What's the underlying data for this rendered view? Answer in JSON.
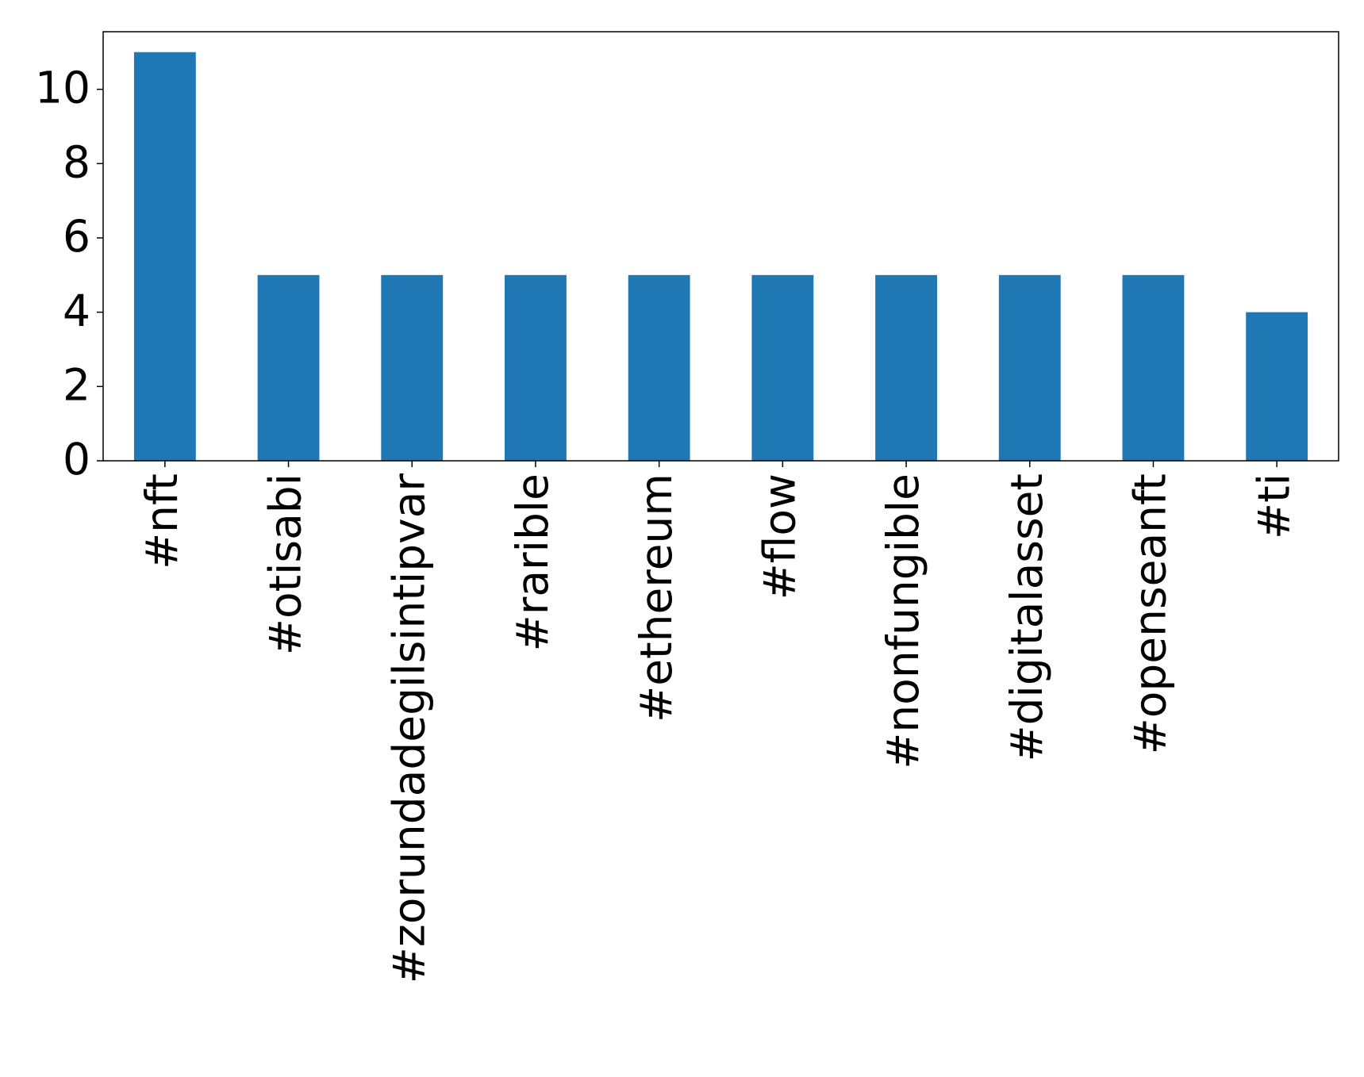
{
  "chart_data": {
    "type": "bar",
    "categories": [
      "#nft",
      "#otisabi",
      "#zorundadegilsintipvar",
      "#rarible",
      "#ethereum",
      "#flow",
      "#nonfungible",
      "#digitalasset",
      "#openseanft",
      "#ti"
    ],
    "values": [
      11,
      5,
      5,
      5,
      5,
      5,
      5,
      5,
      5,
      4
    ],
    "color": "#1f77b4",
    "ylim": [
      0,
      11.55
    ],
    "yticks": [
      0,
      2,
      4,
      6,
      8,
      10
    ],
    "grid": false
  }
}
